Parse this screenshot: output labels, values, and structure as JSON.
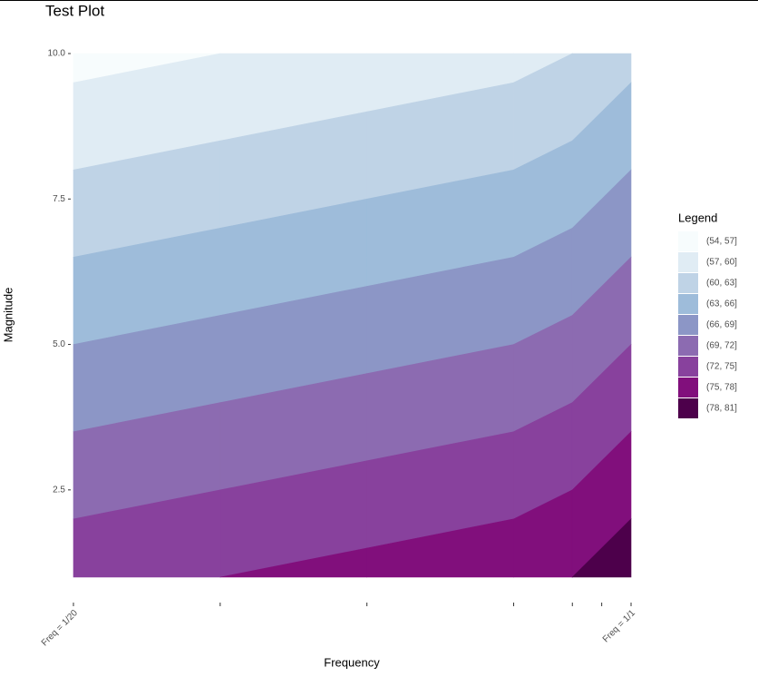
{
  "chart_data": {
    "type": "contour",
    "title": "Test Plot",
    "xlabel": "Frequency",
    "ylabel": "Magnitude",
    "x": [
      0,
      5,
      10,
      15,
      17,
      19
    ],
    "y": [
      1,
      10
    ],
    "z": [
      [
        74,
        75,
        76,
        77,
        78,
        80
      ],
      [
        56,
        57,
        58,
        59,
        60,
        62
      ]
    ],
    "xlim": [
      0,
      19
    ],
    "ylim": [
      1,
      10
    ],
    "xticks": [
      {
        "value": 0,
        "label": "Freq = 1/20"
      },
      {
        "value": 5,
        "label": null
      },
      {
        "value": 10,
        "label": null
      },
      {
        "value": 15,
        "label": null
      },
      {
        "value": 17,
        "label": null
      },
      {
        "value": 18,
        "label": null
      },
      {
        "value": 19,
        "label": "Freq = 1/1"
      }
    ],
    "yticks": [
      2.5,
      {
        "value": 5,
        "label": "5.0"
      },
      7.5,
      {
        "value": 10,
        "label": "10.0"
      }
    ],
    "levels": [
      54,
      57,
      60,
      63,
      66,
      69,
      72,
      75,
      78,
      81
    ],
    "legend_title": "Legend",
    "bands": [
      {
        "name": "(54, 57]",
        "color": "#f7fcfd"
      },
      {
        "name": "(57, 60]",
        "color": "#e0ecf4"
      },
      {
        "name": "(60, 63]",
        "color": "#bfd3e6"
      },
      {
        "name": "(63, 66]",
        "color": "#9ebcda"
      },
      {
        "name": "(66, 69]",
        "color": "#8c96c6"
      },
      {
        "name": "(69, 72]",
        "color": "#8c6bb1"
      },
      {
        "name": "(72, 75]",
        "color": "#88419d"
      },
      {
        "name": "(75, 78]",
        "color": "#810f7c"
      },
      {
        "name": "(78, 81]",
        "color": "#4d004b"
      }
    ]
  }
}
